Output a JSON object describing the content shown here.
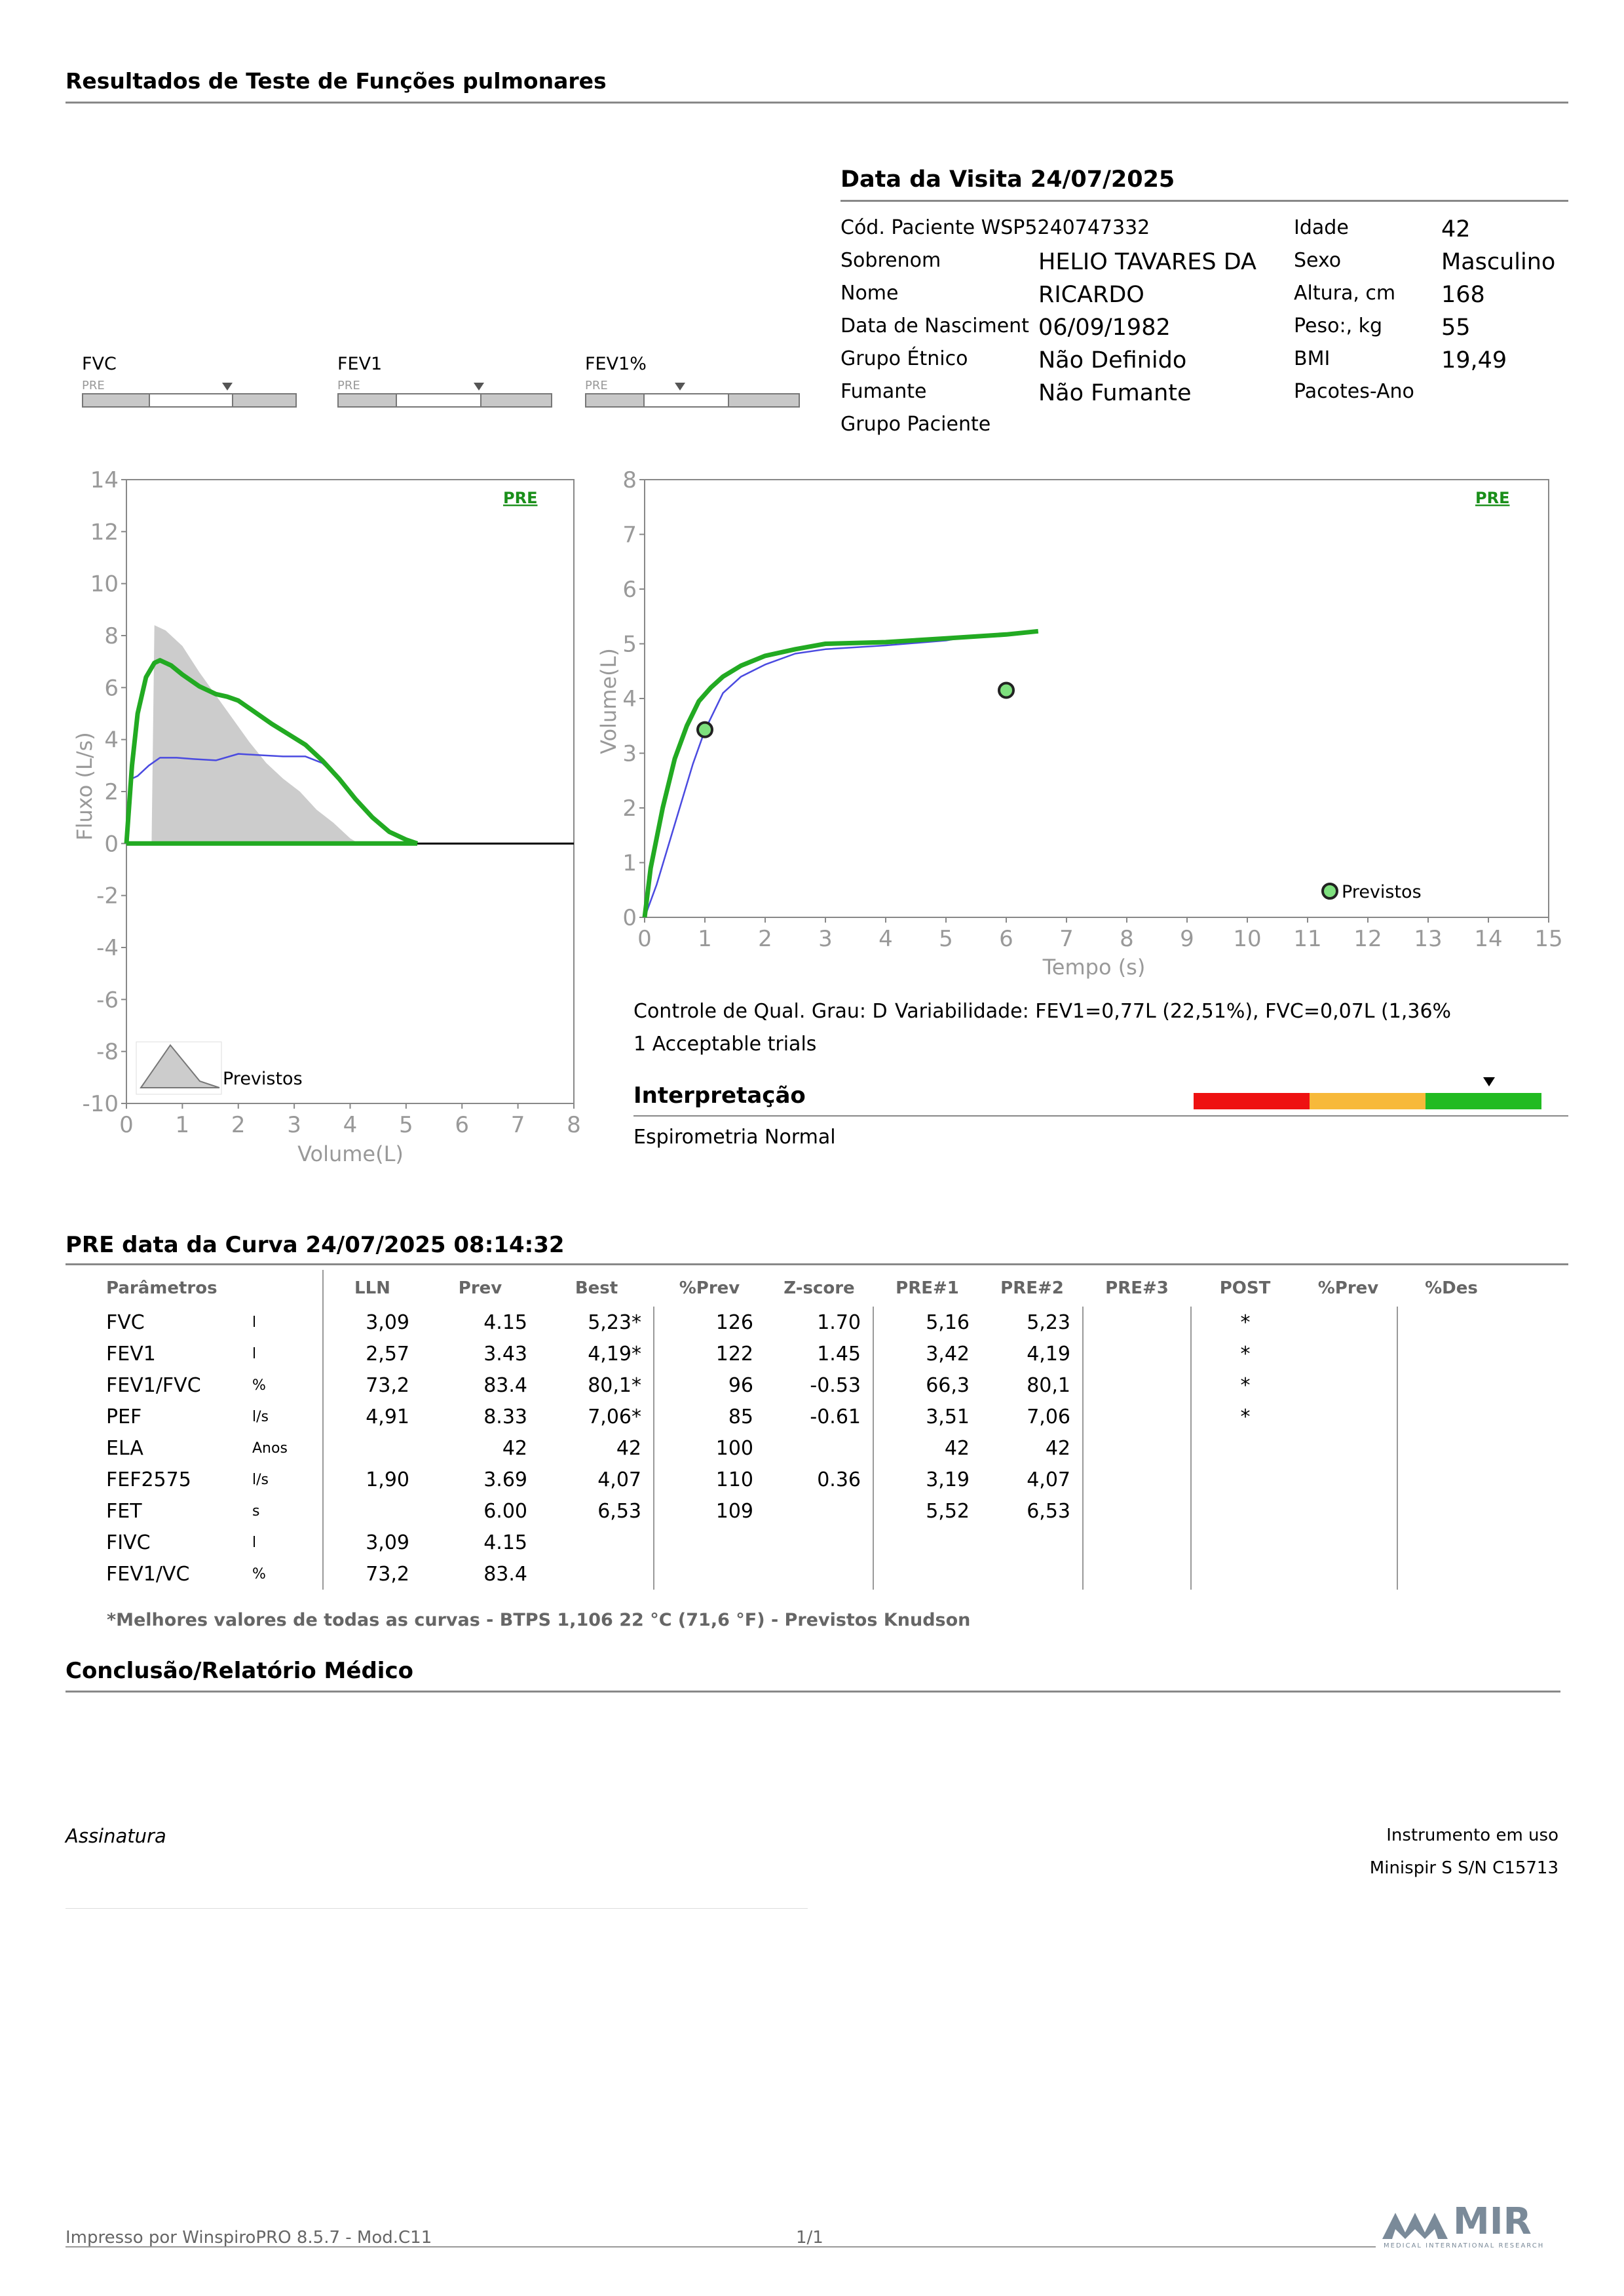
{
  "document": {
    "title": "Resultados de Teste de Funções pulmonares",
    "visit_title": "Data da Visita 24/07/2025"
  },
  "patient": {
    "left": [
      {
        "label": "Cód. Paciente WSP5240747332",
        "value": ""
      },
      {
        "label": "Sobrenom",
        "value": "HELIO TAVARES DA"
      },
      {
        "label": "Nome",
        "value": "RICARDO"
      },
      {
        "label": "Data de Nasciment",
        "value": "06/09/1982"
      },
      {
        "label": "Grupo Étnico",
        "value": "Não Definido"
      },
      {
        "label": "Fumante",
        "value": "Não Fumante"
      },
      {
        "label": "Grupo Paciente",
        "value": ""
      }
    ],
    "right": [
      {
        "label": "Idade",
        "value": "42"
      },
      {
        "label": "Sexo",
        "value": "Masculino"
      },
      {
        "label": "Altura, cm",
        "value": "168"
      },
      {
        "label": "Peso:, kg",
        "value": "55"
      },
      {
        "label": "BMI",
        "value": "19,49"
      },
      {
        "label": "Pacotes-Ano",
        "value": ""
      }
    ]
  },
  "indicators": [
    {
      "label": "FVC",
      "sub": "PRE",
      "level": 0.68
    },
    {
      "label": "FEV1",
      "sub": "PRE",
      "level": 0.66
    },
    {
      "label": "FEV1%",
      "sub": "PRE",
      "level": 0.44
    }
  ],
  "chart_data": [
    {
      "type": "line",
      "name": "flow-volume",
      "tag": "PRE",
      "xlabel": "Volume(L)",
      "ylabel": "Fluxo (L/s)",
      "xlim": [
        0,
        8
      ],
      "ylim": [
        -10,
        14
      ],
      "xticks": [
        "0",
        "1",
        "2",
        "3",
        "4",
        "5",
        "6",
        "7",
        "8"
      ],
      "yticks": [
        "14",
        "12",
        "10",
        "8",
        "6",
        "4",
        "2",
        "0",
        "-2",
        "-4",
        "-6",
        "-8",
        "-10"
      ],
      "legend_label": "Previstos",
      "series": [
        {
          "role": "measured",
          "color": "#22aa22",
          "x": [
            0,
            0.1,
            0.2,
            0.35,
            0.5,
            0.6,
            0.8,
            1.0,
            1.3,
            1.6,
            1.8,
            2.0,
            2.3,
            2.6,
            2.9,
            3.2,
            3.5,
            3.8,
            4.1,
            4.4,
            4.7,
            5.0,
            5.2
          ],
          "y": [
            0,
            3.0,
            5.0,
            6.4,
            6.95,
            7.05,
            6.85,
            6.5,
            6.05,
            5.75,
            5.65,
            5.5,
            5.05,
            4.6,
            4.2,
            3.8,
            3.2,
            2.5,
            1.7,
            1.0,
            0.45,
            0.15,
            0
          ]
        },
        {
          "role": "baseline",
          "color": "#22aa22",
          "x": [
            0,
            5.2
          ],
          "y": [
            0,
            0
          ]
        },
        {
          "role": "other-trial",
          "color": "#4a4ae0",
          "x": [
            0,
            0.1,
            0.2,
            0.4,
            0.6,
            0.9,
            1.2,
            1.6,
            2.0,
            2.4,
            2.8,
            3.2,
            3.5,
            3.8,
            4.1,
            4.4,
            4.7,
            5.0,
            5.2
          ],
          "y": [
            0,
            2.5,
            2.6,
            3.0,
            3.3,
            3.3,
            3.25,
            3.2,
            3.45,
            3.4,
            3.35,
            3.35,
            3.1,
            2.5,
            1.7,
            1.0,
            0.45,
            0.15,
            0
          ]
        },
        {
          "role": "predicted",
          "color": "#cccccc",
          "x": [
            0.45,
            0.5,
            0.7,
            1.0,
            1.3,
            1.6,
            1.9,
            2.2,
            2.5,
            2.8,
            3.1,
            3.4,
            3.7,
            4.0,
            4.15
          ],
          "y": [
            0,
            8.4,
            8.2,
            7.6,
            6.6,
            5.7,
            4.8,
            3.9,
            3.1,
            2.5,
            2.0,
            1.3,
            0.8,
            0.2,
            0
          ]
        }
      ]
    },
    {
      "type": "line",
      "name": "volume-time",
      "tag": "PRE",
      "xlabel": "Tempo (s)",
      "ylabel": "Volume(L)",
      "xlim": [
        0,
        15
      ],
      "ylim": [
        0,
        8
      ],
      "xticks": [
        "0",
        "1",
        "2",
        "3",
        "4",
        "5",
        "6",
        "7",
        "8",
        "9",
        "10",
        "11",
        "12",
        "13",
        "14",
        "15"
      ],
      "yticks": [
        "8",
        "7",
        "6",
        "5",
        "4",
        "3",
        "2",
        "1",
        "0"
      ],
      "legend_label": "Previstos",
      "series": [
        {
          "role": "measured",
          "color": "#22aa22",
          "x": [
            0,
            0.1,
            0.3,
            0.5,
            0.7,
            0.9,
            1.1,
            1.3,
            1.6,
            2.0,
            2.5,
            3.0,
            4.0,
            5.0,
            6.0,
            6.53
          ],
          "y": [
            0,
            0.9,
            2.0,
            2.9,
            3.5,
            3.95,
            4.2,
            4.4,
            4.6,
            4.78,
            4.9,
            5.0,
            5.03,
            5.1,
            5.17,
            5.23
          ]
        },
        {
          "role": "other-trial",
          "color": "#4a4ae0",
          "x": [
            0,
            0.2,
            0.5,
            0.8,
            1.0,
            1.3,
            1.6,
            2.0,
            2.5,
            3.0,
            4.0,
            5.0,
            5.52
          ],
          "y": [
            0,
            0.6,
            1.7,
            2.8,
            3.42,
            4.1,
            4.4,
            4.62,
            4.82,
            4.9,
            4.97,
            5.06,
            5.16
          ]
        }
      ],
      "predicted_points": [
        {
          "x": 1.0,
          "y": 3.43
        },
        {
          "x": 6.0,
          "y": 4.15
        }
      ]
    }
  ],
  "quality": {
    "grade": "Controle de Qual. Grau: D",
    "variability": "Variabilidade: FEV1=0,77L (22,51%), FVC=0,07L (1,36%",
    "trials": "1 Acceptable trials"
  },
  "interpretation": {
    "title": "Interpretação",
    "text": "Espirometria Normal",
    "scale_colors": [
      "#ee1111",
      "#f7b93a",
      "#22bb22"
    ],
    "level": 0.85
  },
  "results": {
    "title": "PRE data da Curva 24/07/2025   08:14:32",
    "headers": [
      "Parâmetros",
      "",
      "LLN",
      "Prev",
      "Best",
      "%Prev",
      "Z-score",
      "PRE#1",
      "PRE#2",
      "PRE#3",
      "POST",
      "%Prev",
      "%Des"
    ],
    "rows": [
      [
        "FVC",
        "l",
        "3,09",
        "4.15",
        "5,23*",
        "126",
        "1.70",
        "5,16",
        "5,23",
        "",
        "*",
        "",
        ""
      ],
      [
        "FEV1",
        "l",
        "2,57",
        "3.43",
        "4,19*",
        "122",
        "1.45",
        "3,42",
        "4,19",
        "",
        "*",
        "",
        ""
      ],
      [
        "FEV1/FVC",
        "%",
        "73,2",
        "83.4",
        "80,1*",
        "96",
        "-0.53",
        "66,3",
        "80,1",
        "",
        "*",
        "",
        ""
      ],
      [
        "PEF",
        "l/s",
        "4,91",
        "8.33",
        "7,06*",
        "85",
        "-0.61",
        "3,51",
        "7,06",
        "",
        "*",
        "",
        ""
      ],
      [
        "ELA",
        "Anos",
        "",
        "42",
        "42",
        "100",
        "",
        "42",
        "42",
        "",
        "",
        "",
        ""
      ],
      [
        "FEF2575",
        "l/s",
        "1,90",
        "3.69",
        "4,07",
        "110",
        "0.36",
        "3,19",
        "4,07",
        "",
        "",
        "",
        ""
      ],
      [
        "FET",
        "s",
        "",
        "6.00",
        "6,53",
        "109",
        "",
        "5,52",
        "6,53",
        "",
        "",
        "",
        ""
      ],
      [
        "FIVC",
        "l",
        "3,09",
        "4.15",
        "",
        "",
        "",
        "",
        "",
        "",
        "",
        "",
        ""
      ],
      [
        "FEV1/VC",
        "%",
        "73,2",
        "83.4",
        "",
        "",
        "",
        "",
        "",
        "",
        "",
        "",
        ""
      ]
    ],
    "footnote": "*Melhores valores de todas as curvas - BTPS  1,106  22 °C  (71,6 °F) - Previstos Knudson"
  },
  "conclusion": {
    "title": "Conclusão/Relatório Médico",
    "signature": "Assinatura",
    "instrument_label": "Instrumento em uso",
    "instrument_value": "Minispir S S/N C15713"
  },
  "footer": {
    "printed_by": "Impresso por WinspiroPRO  8.5.7 - Mod.C11",
    "page": "1/1",
    "brand": "MIR",
    "brand_sub": "MEDICAL INTERNATIONAL RESEARCH",
    "brand_color": "#7a8a99"
  }
}
